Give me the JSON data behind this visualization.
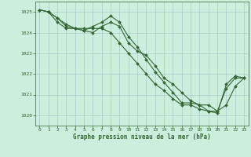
{
  "title": "Graphe pression niveau de la mer (hPa)",
  "bg_color": "#cceedd",
  "grid_color": "#aacccc",
  "line_color": "#336633",
  "marker_color": "#336633",
  "xlim": [
    -0.5,
    23.5
  ],
  "ylim": [
    1019.5,
    1025.5
  ],
  "xticks": [
    0,
    1,
    2,
    3,
    4,
    5,
    6,
    7,
    8,
    9,
    10,
    11,
    12,
    13,
    14,
    15,
    16,
    17,
    18,
    19,
    20,
    21,
    22,
    23
  ],
  "yticks": [
    1020,
    1021,
    1022,
    1023,
    1024,
    1025
  ],
  "series": [
    [
      1025.1,
      1025.0,
      1024.5,
      1024.2,
      1024.2,
      1024.1,
      1024.0,
      1024.3,
      1024.5,
      1024.3,
      1023.5,
      1023.1,
      1022.9,
      1022.4,
      1021.8,
      1021.5,
      1021.1,
      1020.7,
      1020.5,
      1020.5,
      1020.2,
      1020.5,
      1021.4,
      1021.8
    ],
    [
      1025.1,
      1025.0,
      1024.7,
      1024.4,
      1024.2,
      1024.1,
      1024.3,
      1024.5,
      1024.8,
      1024.5,
      1023.8,
      1023.3,
      1022.7,
      1022.1,
      1021.6,
      1021.1,
      1020.6,
      1020.6,
      1020.5,
      1020.2,
      1020.2,
      1021.3,
      1021.8,
      1021.8
    ],
    [
      1025.1,
      1025.0,
      1024.7,
      1024.3,
      1024.2,
      1024.2,
      1024.2,
      1024.2,
      1024.0,
      1023.5,
      1023.0,
      1022.5,
      1022.0,
      1021.5,
      1021.2,
      1020.8,
      1020.5,
      1020.5,
      1020.3,
      1020.2,
      1020.1,
      1021.5,
      1021.9,
      1021.8
    ]
  ]
}
